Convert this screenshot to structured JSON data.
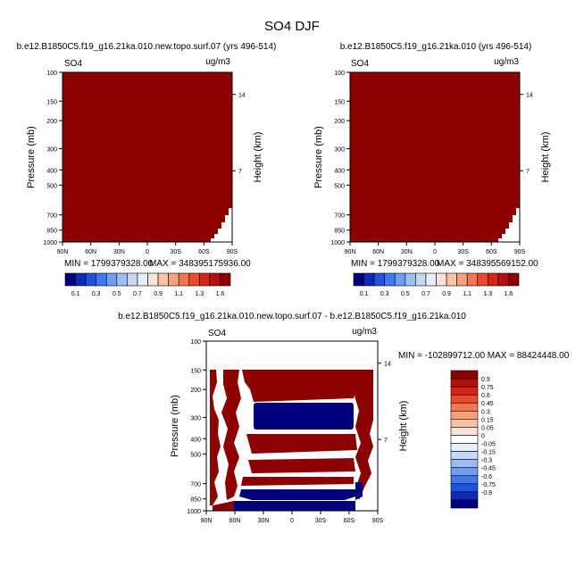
{
  "page": {
    "title": "SO4 DJF"
  },
  "chart_data": [
    {
      "type": "heatmap",
      "title": "b.e12.B1850C5.f19_g16.21ka.010.new.topo.surf.07 (yrs 496-514)",
      "left_label": "SO4",
      "units": "ug/m3",
      "ylabel": "Pressure (mb)",
      "ylabel_right": "Height (km)",
      "x_ticks": [
        "90N",
        "60N",
        "30N",
        "0",
        "30S",
        "60S",
        "90S"
      ],
      "y_ticks": [
        "100",
        "150",
        "200",
        "300",
        "400",
        "500",
        "700",
        "850",
        "1000"
      ],
      "right_ticks": [
        "14",
        "7"
      ],
      "min_text": "MIN = 1799379328.00",
      "max_text": "MAX = 348395175936.00",
      "field": "uniform value above top contour level (dark red) everywhere except terrain-masked lower right corner",
      "colorbar_labels": [
        "0.1",
        "0.3",
        "0.5",
        "0.7",
        "0.9",
        "1.1",
        "1.3",
        "1.6"
      ]
    },
    {
      "type": "heatmap",
      "title": "b.e12.B1850C5.f19_g16.21ka.010 (yrs 496-514)",
      "left_label": "SO4",
      "units": "ug/m3",
      "ylabel": "Pressure (mb)",
      "ylabel_right": "Height (km)",
      "x_ticks": [
        "90N",
        "60N",
        "30N",
        "0",
        "30S",
        "60S",
        "90S"
      ],
      "y_ticks": [
        "100",
        "150",
        "200",
        "300",
        "400",
        "500",
        "700",
        "850",
        "1000"
      ],
      "right_ticks": [
        "14",
        "7"
      ],
      "min_text": "MIN = 1799379328.00",
      "max_text": "MAX = 348395569152.00",
      "colorbar_labels": [
        "0.1",
        "0.3",
        "0.5",
        "0.7",
        "0.9",
        "1.1",
        "1.3",
        "1.6"
      ]
    },
    {
      "type": "heatmap",
      "title": "b.e12.B1850C5.f19_g16.21ka.010.new.topo.surf.07 - b.e12.B1850C5.f19_g16.21ka.010",
      "left_label": "SO4",
      "units": "ug/m3",
      "ylabel": "Pressure (mb)",
      "ylabel_right": "Height (km)",
      "x_ticks": [
        "90N",
        "60N",
        "30N",
        "0",
        "30S",
        "60S",
        "90S"
      ],
      "y_ticks": [
        "100",
        "150",
        "200",
        "300",
        "400",
        "500",
        "700",
        "850",
        "1000"
      ],
      "right_ticks": [
        "14",
        "7"
      ],
      "minmax_text": "MIN = -102899712.00   MAX = 88424448.00",
      "colorbar_labels": [
        "0.9",
        "0.75",
        "0.6",
        "0.45",
        "0.3",
        "0.15",
        "0.05",
        "0",
        "-0.05",
        "-0.15",
        "-0.3",
        "-0.45",
        "-0.6",
        "-0.75",
        "-0.9"
      ]
    }
  ],
  "colors": {
    "top_scale": [
      "#00007f",
      "#0d2bb8",
      "#2052e0",
      "#3f77ee",
      "#6e9df2",
      "#9dbdf4",
      "#c6d8f4",
      "#e6eef9",
      "#fbe2d6",
      "#f9c3a8",
      "#f6a07c",
      "#f27650",
      "#ea4b2c",
      "#d62516",
      "#b30f0c",
      "#8c0000"
    ],
    "diff_scale": [
      "#8c0000",
      "#b30f0c",
      "#d62516",
      "#ea4b2c",
      "#f27650",
      "#f6a07c",
      "#f9c3a8",
      "#fbe2d6",
      "#ffffff",
      "#e6eef9",
      "#c6d8f4",
      "#9dbdf4",
      "#6e9df2",
      "#3f77ee",
      "#2052e0",
      "#0d2bb8",
      "#00007f"
    ],
    "field_positive": "#8c0000",
    "field_negative": "#00007f"
  }
}
